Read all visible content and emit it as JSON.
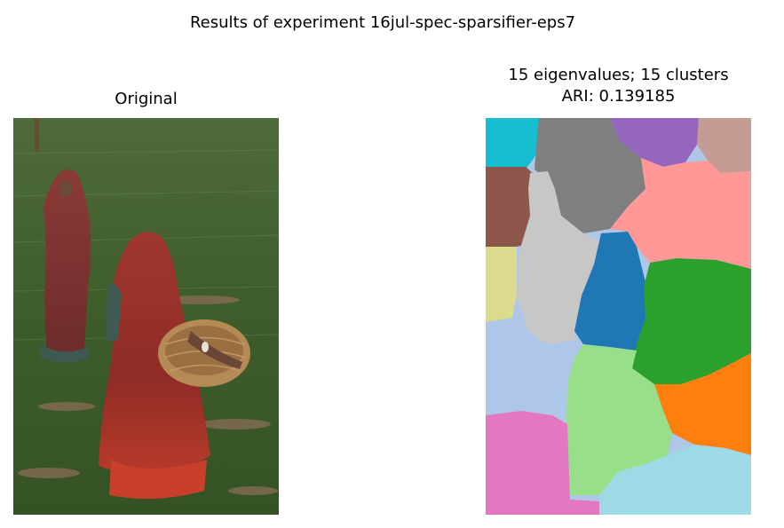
{
  "figure": {
    "suptitle": "Results of experiment 16jul-spec-sparsifier-eps7"
  },
  "original_panel": {
    "title": "Original",
    "image_description": "photo"
  },
  "segmentation_panel": {
    "title_line1": "15 eigenvalues; 15 clusters",
    "title_line2": "ARI: 0.139185",
    "cluster_colors": {
      "c_blue": "#1f77b4",
      "c_orange": "#ff7f0e",
      "c_green": "#2ca02c",
      "c_pink_light": "#ff9896",
      "c_purple": "#9467bd",
      "c_brown": "#8c564b",
      "c_rosebrown": "#c49c94",
      "c_magenta": "#e377c2",
      "c_gray": "#7f7f7f",
      "c_lightgray": "#c7c7c7",
      "c_khaki": "#dbdb8d",
      "c_cyan": "#17becf",
      "c_lightcyan": "#9edae5",
      "c_lightblue": "#aec7e8",
      "c_lightgreen": "#98df8a"
    }
  }
}
